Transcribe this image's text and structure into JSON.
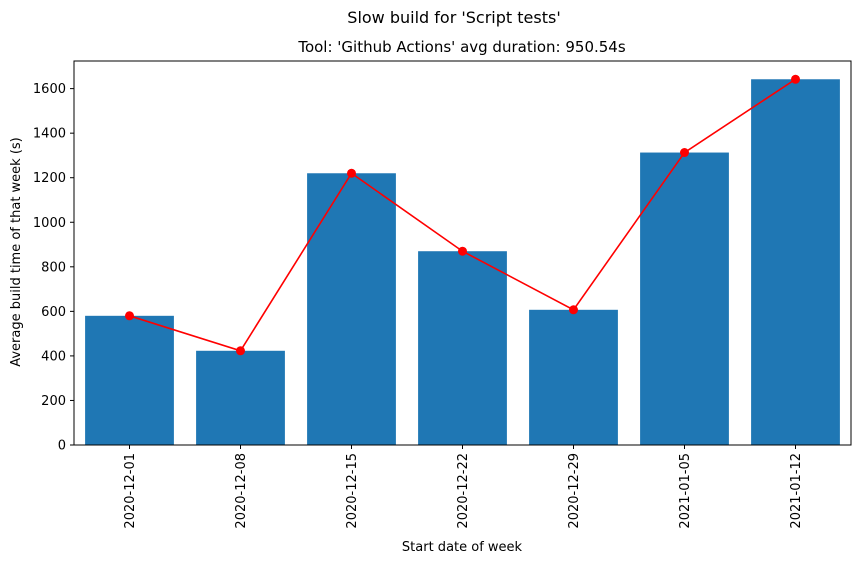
{
  "chart_data": {
    "type": "bar",
    "suptitle": "Slow build for 'Script tests'",
    "title": "Tool: 'Github Actions' avg duration: 950.54s",
    "xlabel": "Start date of week",
    "ylabel": "Average build time of that week (s)",
    "categories": [
      "2020-12-01",
      "2020-12-08",
      "2020-12-15",
      "2020-12-22",
      "2020-12-29",
      "2021-01-05",
      "2021-01-12"
    ],
    "series": [
      {
        "type": "bar",
        "color": "#1f77b4",
        "values": [
          580,
          423,
          1220,
          870,
          607,
          1313,
          1642
        ]
      },
      {
        "type": "line",
        "color": "#ff0000",
        "marker": "circle",
        "values": [
          580,
          423,
          1220,
          870,
          607,
          1313,
          1642
        ]
      }
    ],
    "yticks": [
      0,
      200,
      400,
      600,
      800,
      1000,
      1200,
      1400,
      1600
    ],
    "ylim": [
      0,
      1724
    ],
    "grid": false,
    "legend": false
  }
}
